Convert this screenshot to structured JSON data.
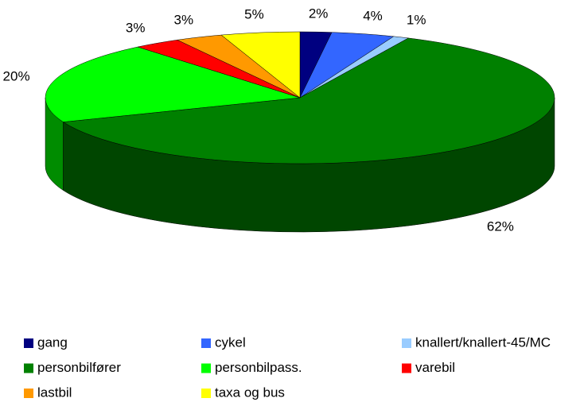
{
  "chart_data": {
    "type": "pie3d",
    "categories": [
      "gang",
      "cykel",
      "knallert/knallert-45/MC",
      "personbilfører",
      "personbilpass.",
      "varebil",
      "lastbil",
      "taxa og bus"
    ],
    "values": [
      2,
      4,
      1,
      62,
      20,
      3,
      3,
      5
    ],
    "value_labels": [
      "2%",
      "4%",
      "1%",
      "62%",
      "20%",
      "3%",
      "3%",
      "5%"
    ],
    "colors": [
      "#000080",
      "#3366ff",
      "#99ccff",
      "#008000",
      "#00ff00",
      "#ff0000",
      "#ff9900",
      "#ffff00"
    ],
    "legend": "bottom"
  }
}
